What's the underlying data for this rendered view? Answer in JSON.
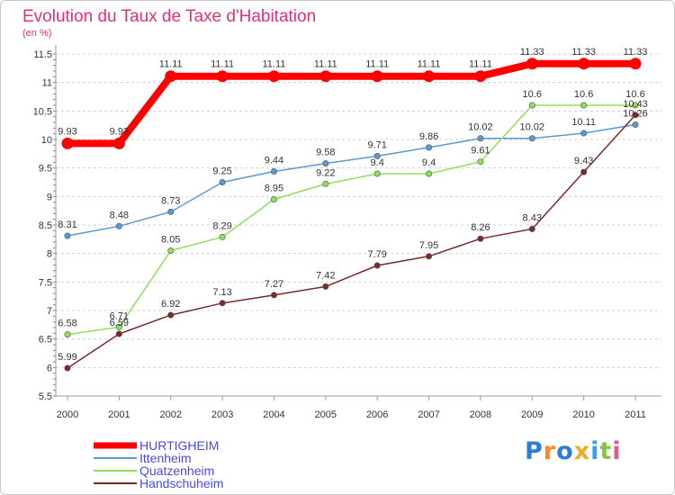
{
  "chart_data": {
    "type": "line",
    "title": "Evolution du Taux de Taxe d'Habitation",
    "unit_label": "(en %)",
    "x": [
      "2000",
      "2001",
      "2002",
      "2003",
      "2004",
      "2005",
      "2006",
      "2007",
      "2008",
      "2009",
      "2010",
      "2011"
    ],
    "ylim": [
      5.5,
      11.5
    ],
    "yticks": [
      "5.5",
      "6",
      "6.5",
      "7",
      "7.5",
      "8",
      "8.5",
      "9",
      "9.5",
      "10",
      "10.5",
      "11",
      "11.5"
    ],
    "grid": "dashed horizontal",
    "legend_position": "bottom-left",
    "series": [
      {
        "name": "HURTIGHEIM",
        "color": "#ff0000",
        "values": [
          9.93,
          9.93,
          11.11,
          11.11,
          11.11,
          11.11,
          11.11,
          11.11,
          11.11,
          11.33,
          11.33,
          11.33
        ],
        "labels": [
          "9.93",
          "9.93",
          "11.11",
          "11.11",
          "11.11",
          "11.11",
          "11.11",
          "11.11",
          "11.11",
          "11.33",
          "11.33",
          "11.33"
        ]
      },
      {
        "name": "Ittenheim",
        "color": "#5a9ad0",
        "values": [
          8.31,
          8.48,
          8.73,
          9.25,
          9.44,
          9.58,
          9.71,
          9.86,
          10.02,
          10.02,
          10.11,
          10.26
        ],
        "labels": [
          "8.31",
          "8.48",
          "8.73",
          "9.25",
          "9.44",
          "9.58",
          "9.71",
          "9.86",
          "10.02",
          "10.02",
          "10.11",
          "10.26"
        ]
      },
      {
        "name": "Quatzenheim",
        "color": "#8ee05a",
        "values": [
          6.58,
          6.71,
          8.05,
          8.29,
          8.95,
          9.22,
          9.4,
          9.4,
          9.61,
          10.6,
          10.6,
          10.6
        ],
        "labels": [
          "6.58",
          "6.71",
          "8.05",
          "8.29",
          "8.95",
          "9.22",
          "9.4",
          "9.4",
          "9.61",
          "10.6",
          "10.6",
          "10.6"
        ]
      },
      {
        "name": "Handschuheim",
        "color": "#7a2a2a",
        "values": [
          5.99,
          6.59,
          6.92,
          7.13,
          7.27,
          7.42,
          7.79,
          7.95,
          8.26,
          8.43,
          9.43,
          10.43
        ],
        "labels": [
          "5.99",
          "6.59",
          "6.92",
          "7.13",
          "7.27",
          "7.42",
          "7.79",
          "7.95",
          "8.26",
          "8.43",
          "9.43",
          "10.43"
        ]
      }
    ]
  },
  "brand": {
    "text": "Proxiti"
  }
}
